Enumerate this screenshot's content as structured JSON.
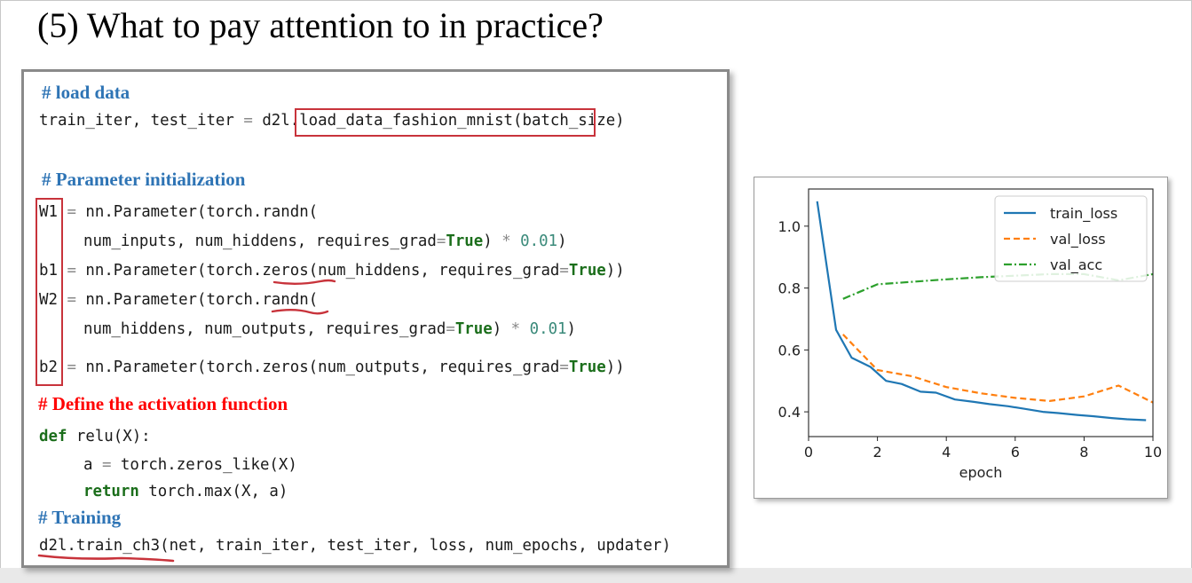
{
  "slide": {
    "title": "(5) What to pay attention to in practice?"
  },
  "code": {
    "comments": {
      "load": "# load data",
      "param": "# Parameter initialization",
      "activation": "# Define the activation function",
      "training": "# Training"
    },
    "colors": {
      "comment_blue": "#2e74b5",
      "comment_red": "#ff0000",
      "keyword": "#1b6e1b",
      "number": "#3a8a7a",
      "highlight_red": "#c8333b"
    },
    "load": {
      "prefix": "train_iter, test_iter ",
      "eq": "=",
      "func": "d2l.load_data_fashion_mnist",
      "args": "(batch_size)"
    },
    "w1": {
      "var": "W1",
      "eq": "=",
      "rest": " nn.Parameter(torch.randn(",
      "cont_pre": "num_inputs, num_hiddens, requires_grad",
      "kw": "True",
      "times": "*",
      "num": "0.01",
      "close": ")"
    },
    "b1": {
      "var": "b1",
      "eq": "=",
      "pre": " nn.Parameter(torch.",
      "fn": "zeros",
      "post": "(num_hiddens, requires_grad",
      "kw": "True",
      "close": "))"
    },
    "w2": {
      "var": "W2",
      "eq": "=",
      "pre": " nn.Parameter(torch.",
      "fn": "randn",
      "post": "(",
      "cont_pre": "num_hiddens, num_outputs, requires_grad",
      "kw": "True",
      "times": "*",
      "num": "0.01",
      "close": ")"
    },
    "b2": {
      "var": "b2",
      "eq": "=",
      "rest": " nn.Parameter(torch.zeros(num_outputs, requires_grad",
      "kw": "True",
      "close": "))"
    },
    "relu": {
      "def_kw": "def",
      "sig": " relu(X):",
      "body1_pre": "a ",
      "eq": "=",
      "body1_post": " torch.zeros_like(X)",
      "ret_kw": "return",
      "body2": " torch.max(X, a)"
    },
    "train": {
      "fn": "d2l.train_ch3",
      "args": "(net, train_iter, test_iter, loss, num_epochs, updater)"
    }
  },
  "chart_data": {
    "type": "line",
    "title": "",
    "xlabel": "epoch",
    "ylabel": "",
    "xlim": [
      0,
      10
    ],
    "ylim": [
      0.32,
      1.12
    ],
    "xticks": [
      0,
      2,
      4,
      6,
      8,
      10
    ],
    "yticks": [
      0.4,
      0.6,
      0.8,
      1.0
    ],
    "xtick_labels": [
      "0",
      "2",
      "4",
      "6",
      "8",
      "10"
    ],
    "ytick_labels": [
      "0.4",
      "0.6",
      "0.8",
      "1.0"
    ],
    "grid": false,
    "legend_position": "top-right",
    "series": [
      {
        "name": "train_loss",
        "color": "#1f77b4",
        "style": "solid",
        "x": [
          0.25,
          0.8,
          1.25,
          1.8,
          2.25,
          2.7,
          3.25,
          3.7,
          4.25,
          4.8,
          5.25,
          5.8,
          6.25,
          6.8,
          7.25,
          7.8,
          8.25,
          8.8,
          9.25,
          9.8
        ],
        "y": [
          1.08,
          0.665,
          0.575,
          0.545,
          0.5,
          0.49,
          0.465,
          0.462,
          0.44,
          0.432,
          0.425,
          0.418,
          0.41,
          0.4,
          0.396,
          0.39,
          0.386,
          0.38,
          0.376,
          0.373
        ]
      },
      {
        "name": "val_loss",
        "color": "#ff7f0e",
        "style": "dashed",
        "x": [
          1,
          2,
          3,
          4,
          5,
          6,
          7,
          8,
          9,
          10
        ],
        "y": [
          0.65,
          0.535,
          0.515,
          0.48,
          0.46,
          0.445,
          0.435,
          0.45,
          0.485,
          0.43
        ]
      },
      {
        "name": "val_acc",
        "color": "#2ca02c",
        "style": "dashdot",
        "x": [
          1,
          2,
          3,
          4,
          5,
          6,
          7,
          8,
          9,
          10
        ],
        "y": [
          0.765,
          0.812,
          0.82,
          0.828,
          0.835,
          0.84,
          0.845,
          0.845,
          0.825,
          0.845
        ]
      }
    ]
  }
}
